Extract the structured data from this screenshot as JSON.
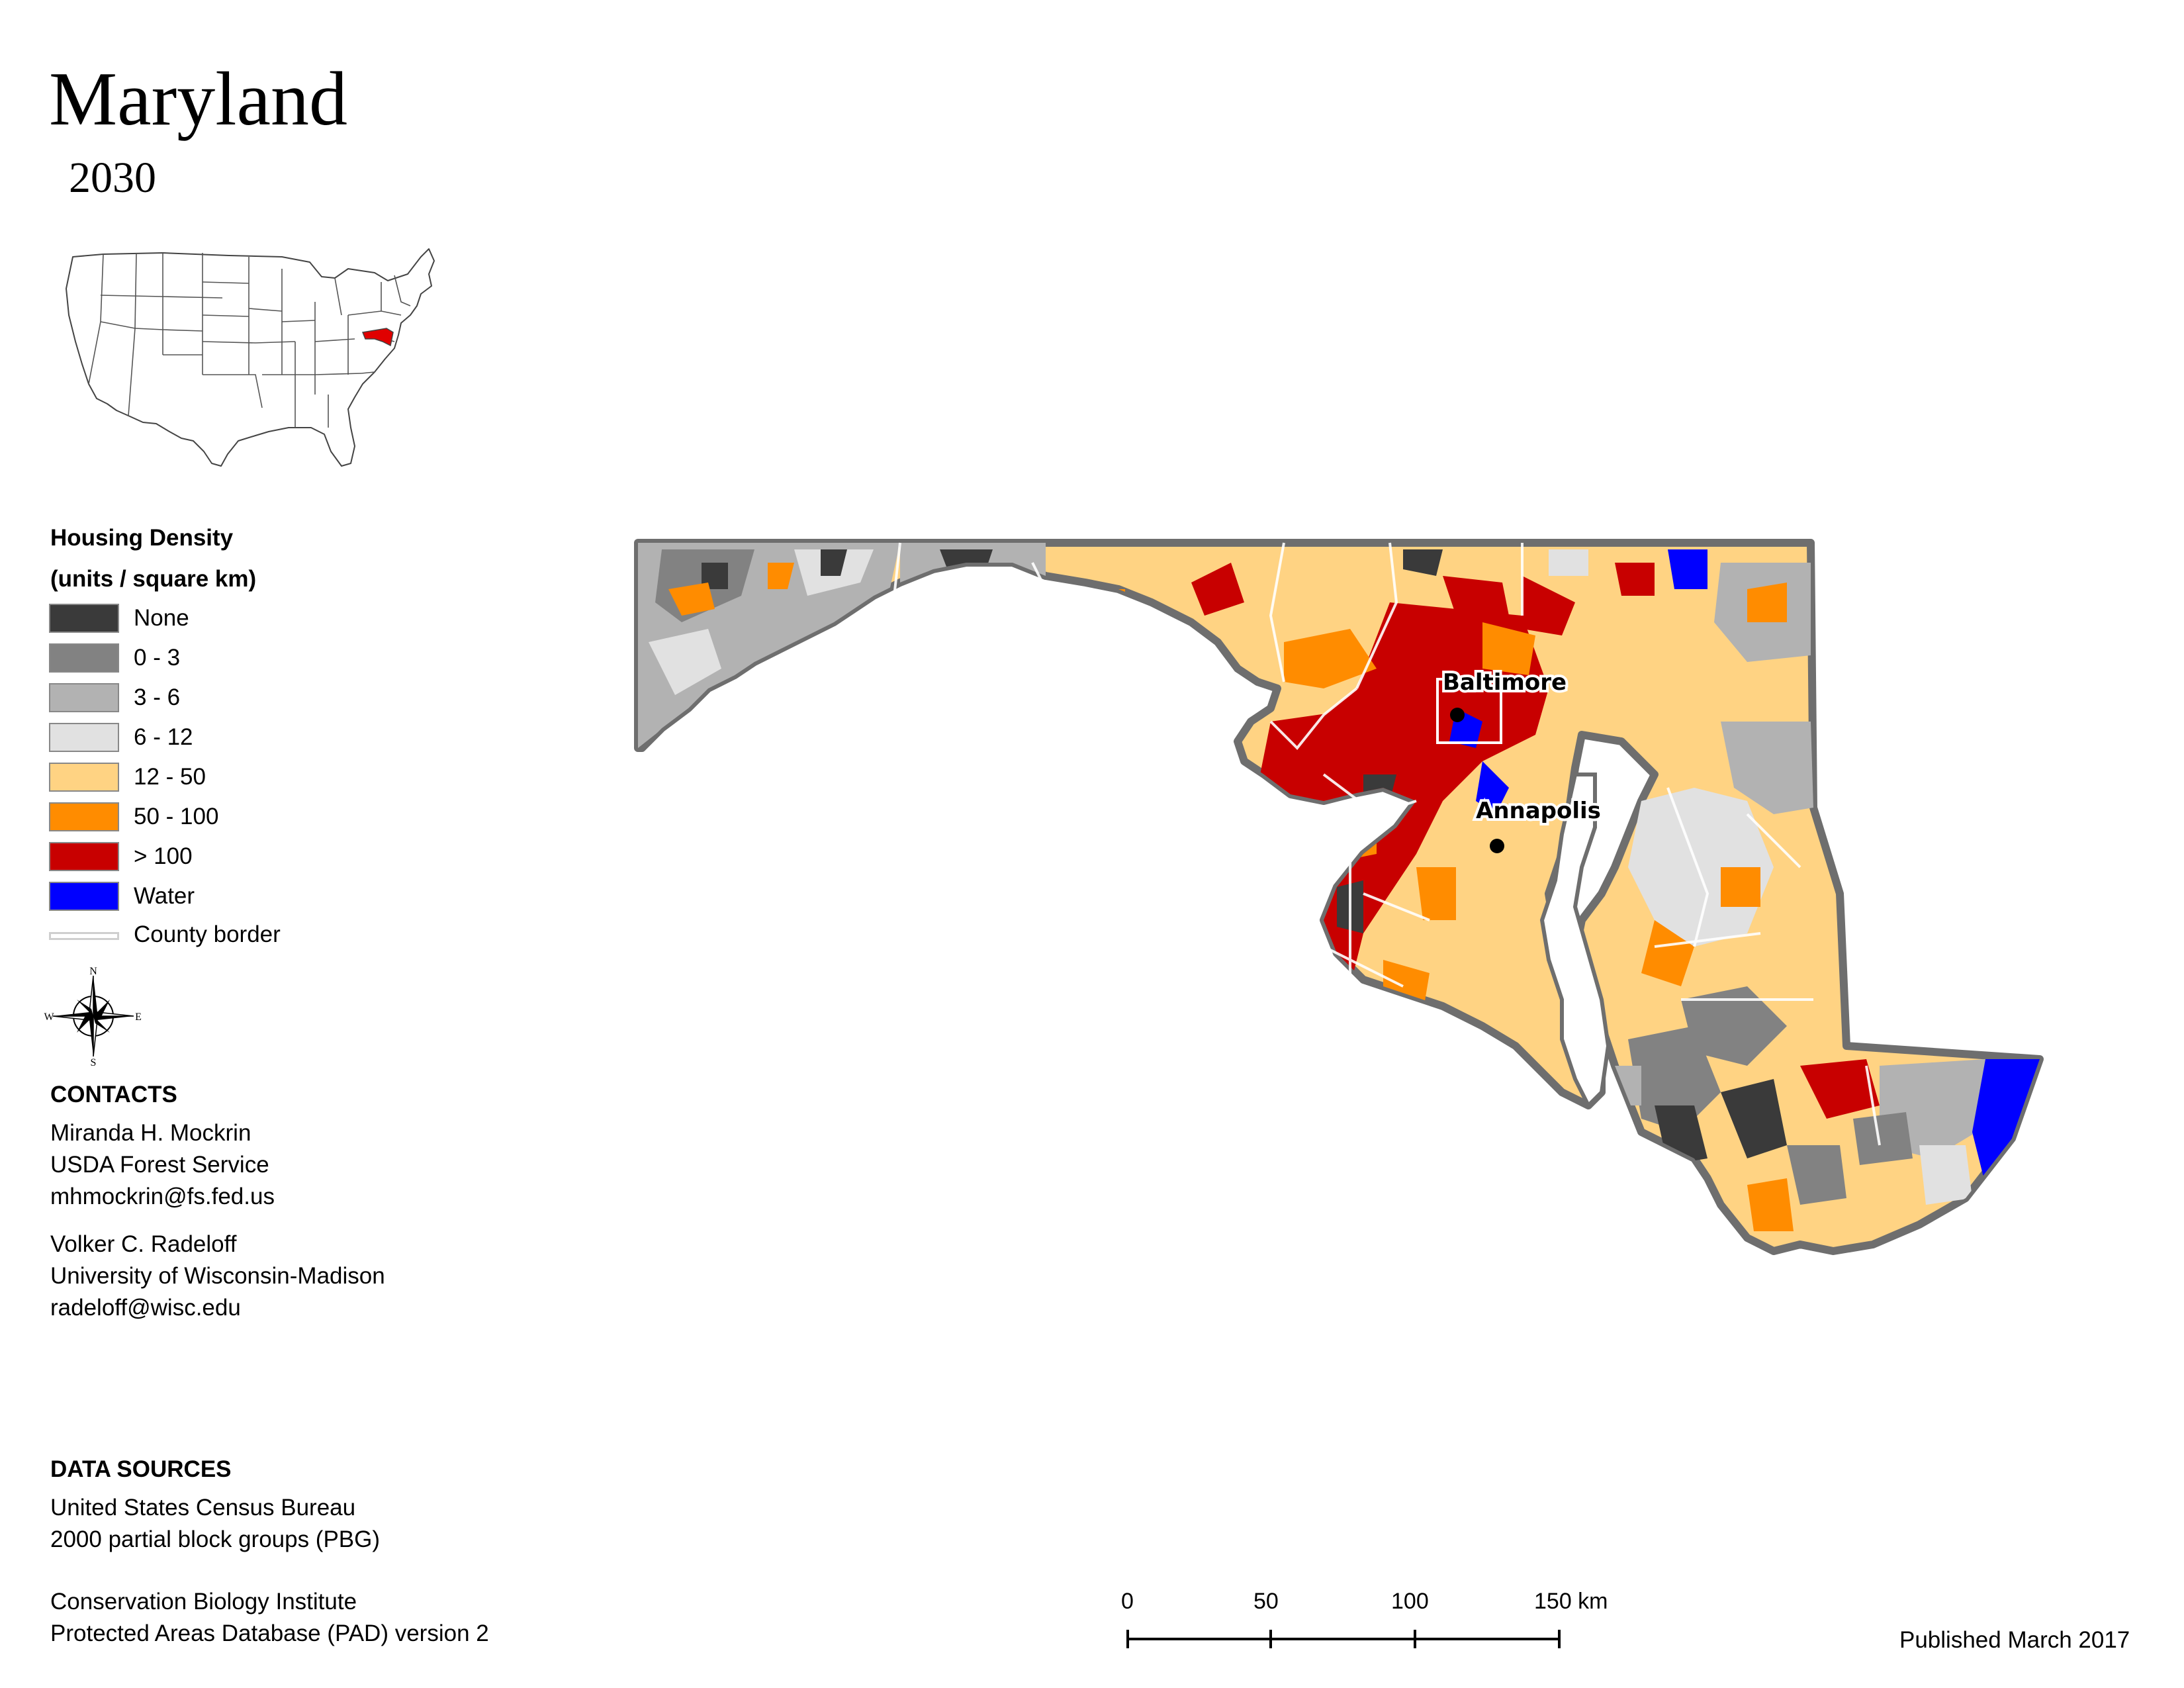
{
  "header": {
    "title": "Maryland",
    "year": "2030"
  },
  "legend": {
    "title_line1": "Housing Density",
    "title_line2": "(units / square km)",
    "items": [
      {
        "label": "None",
        "color": "#3a3a3a"
      },
      {
        "label": "0 - 3",
        "color": "#828282"
      },
      {
        "label": "3 - 6",
        "color": "#b2b2b2"
      },
      {
        "label": "6 - 12",
        "color": "#e1e1e1"
      },
      {
        "label": "12 - 50",
        "color": "#ffd383"
      },
      {
        "label": "50 - 100",
        "color": "#ff8c00"
      },
      {
        "label": "> 100",
        "color": "#c80000"
      },
      {
        "label": "Water",
        "color": "#0000ff"
      }
    ],
    "county_border_label": "County border"
  },
  "compass": {
    "n": "N",
    "s": "S",
    "e": "E",
    "w": "W"
  },
  "contacts": {
    "heading": "CONTACTS",
    "person1": [
      "Miranda H. Mockrin",
      "USDA Forest Service",
      "mhmockrin@fs.fed.us"
    ],
    "person2": [
      "Volker C. Radeloff",
      "University of Wisconsin-Madison",
      "radeloff@wisc.edu"
    ]
  },
  "data_sources": {
    "heading": "DATA SOURCES",
    "source1": [
      "United States Census Bureau",
      "2000 partial block groups (PBG)"
    ],
    "source2": [
      "Conservation Biology Institute",
      "Protected Areas Database (PAD) version 2"
    ]
  },
  "map": {
    "cities": [
      {
        "name": "Baltimore"
      },
      {
        "name": "Annapolis"
      }
    ],
    "inset_highlight_color": "#e00000"
  },
  "scale_bar": {
    "ticks": [
      "0",
      "50",
      "100",
      "150 km"
    ]
  },
  "footer": {
    "published": "Published March 2017"
  }
}
